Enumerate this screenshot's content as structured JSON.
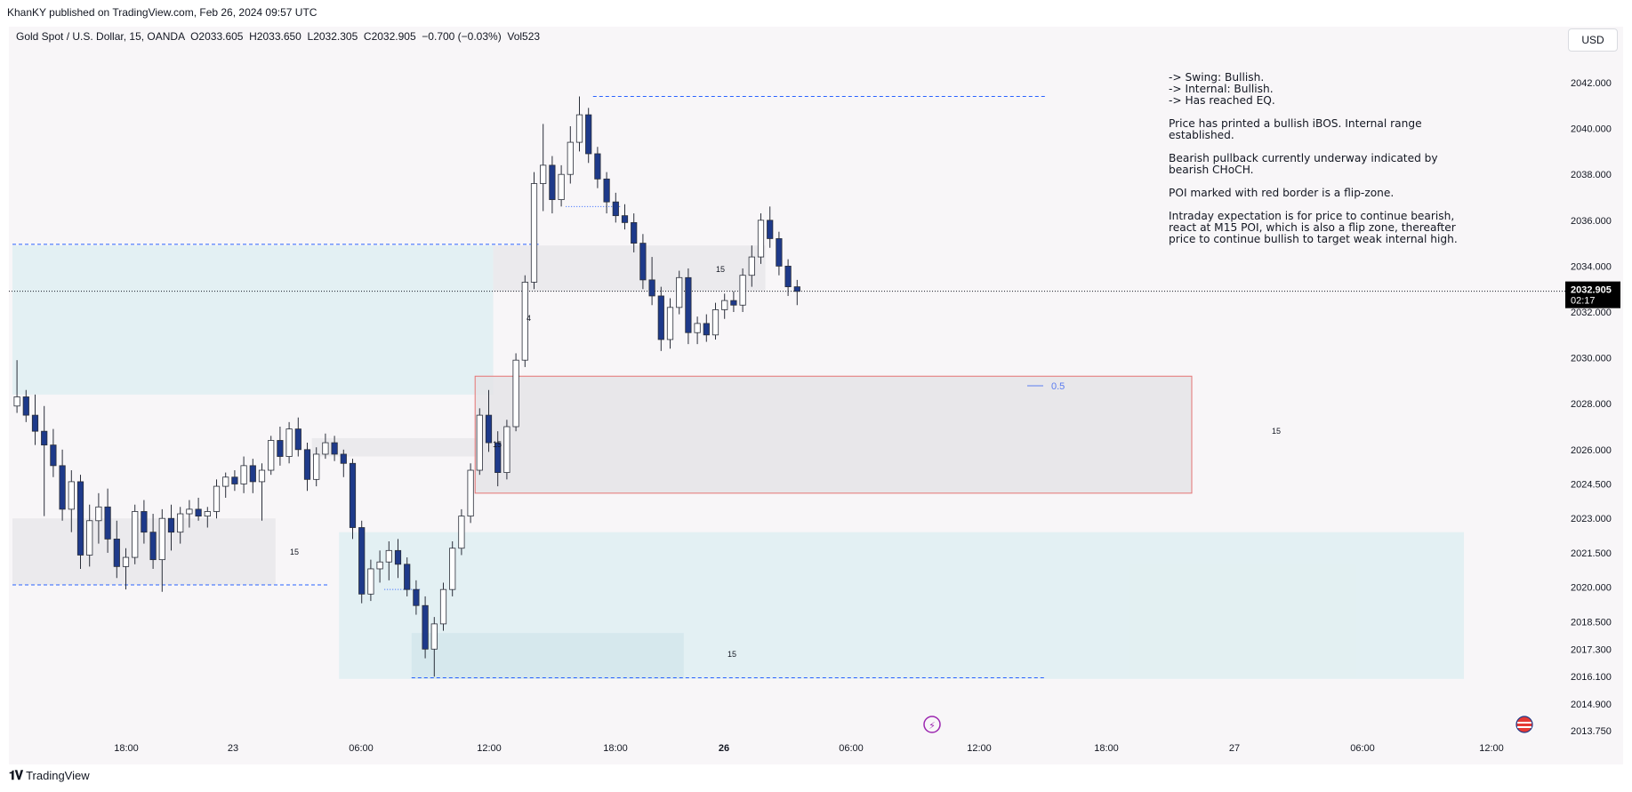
{
  "header": {
    "published": "KhanKY published on TradingView.com, Feb 26, 2024 09:57 UTC"
  },
  "legend": {
    "text": "Gold Spot / U.S. Dollar, 15, OANDA  O2033.605  H2033.650  L2032.305  C2032.905  −0.700 (−0.03%)  Vol523"
  },
  "currency_button": "USD",
  "notes": [
    "-> Swing: Bullish.\n-> Internal: Bullish.\n-> Has reached EQ.",
    "Price has printed a bullish iBOS.  Internal range\nestablished.",
    "Bearish pullback currently underway indicated by\nbearish CHoCH.",
    "POI marked with red border is a flip-zone.",
    "Intraday expectation is for price to continue bearish,\nreact at M15 POI, which is also a flip zone, thereafter\nprice to continue bullish to target weak internal high."
  ],
  "footer": {
    "brand": "TradingView"
  },
  "colors": {
    "bull_candle": "#ffffff",
    "bear_candle": "#1e3a8a",
    "wick": "#2a2e39",
    "zone_teal": "#d7ecef",
    "zone_grey": "#e3e3e6",
    "poi_border": "#e57373",
    "dashed_blue": "#2962ff",
    "price_label_bg": "#000000"
  },
  "chart_data": {
    "type": "candlestick",
    "symbol": "Gold Spot / U.S. Dollar",
    "interval": "15",
    "exchange": "OANDA",
    "ohlc": {
      "open": 2033.605,
      "high": 2033.65,
      "low": 2032.305,
      "close": 2032.905,
      "change": "−0.700 (−0.03%)",
      "volume": "Vol523"
    },
    "last_price": {
      "value": "2032.905",
      "countdown": "02:17"
    },
    "y_ticks": [
      "2042.000",
      "2040.000",
      "2038.000",
      "2036.000",
      "2034.000",
      "2032.000",
      "2030.000",
      "2028.000",
      "2026.000",
      "2024.500",
      "2023.000",
      "2021.500",
      "2020.000",
      "2018.500",
      "2017.300",
      "2016.100",
      "2014.900",
      "2013.750"
    ],
    "x_ticks": [
      "18:00",
      "23",
      "06:00",
      "12:00",
      "18:00",
      "26",
      "06:00",
      "12:00",
      "18:00",
      "27",
      "06:00",
      "12:00"
    ],
    "x_ticks_bold": [
      "26"
    ],
    "annotations": {
      "fib_label": "0.5",
      "zone_labels": [
        "15",
        "15",
        "15",
        "15",
        "4",
        "15"
      ]
    },
    "zones": [
      {
        "kind": "teal",
        "from_bar": 0,
        "to_bar": 53,
        "top": 2034.9,
        "bottom": 2028.4
      },
      {
        "kind": "grey",
        "from_bar": 53,
        "to_bar": 83,
        "top": 2034.9,
        "bottom": 2032.9
      },
      {
        "kind": "grey",
        "from_bar": 0,
        "to_bar": 29,
        "top": 2023.0,
        "bottom": 2020.1
      },
      {
        "kind": "grey",
        "from_bar": 33,
        "to_bar": 52,
        "top": 2026.5,
        "bottom": 2025.7
      },
      {
        "kind": "teal",
        "from_bar": 36,
        "to_bar": 160,
        "top": 2022.4,
        "bottom": 2016.0
      },
      {
        "kind": "teal-dark",
        "from_bar": 44,
        "to_bar": 74,
        "top": 2018.0,
        "bottom": 2016.0
      },
      {
        "kind": "poi",
        "from_bar": 51,
        "to_bar": 130,
        "top": 2029.2,
        "bottom": 2024.1
      }
    ],
    "levels": [
      {
        "value": 2041.4,
        "from_bar": 64,
        "to_bar": 114,
        "style": "dashed"
      },
      {
        "value": 2034.95,
        "from_bar": 0,
        "to_bar": 58,
        "style": "dashed"
      },
      {
        "value": 2020.1,
        "from_bar": 0,
        "to_bar": 35,
        "style": "dashed"
      },
      {
        "value": 2016.05,
        "from_bar": 44,
        "to_bar": 114,
        "style": "dashed"
      },
      {
        "value": 2036.6,
        "from_bar": 61,
        "to_bar": 67,
        "style": "dotted"
      },
      {
        "value": 2019.9,
        "from_bar": 41,
        "to_bar": 45,
        "style": "dotted"
      }
    ],
    "candles": [
      [
        2027.9,
        2029.9,
        2027.6,
        2028.3
      ],
      [
        2028.3,
        2028.6,
        2027.2,
        2027.5
      ],
      [
        2027.5,
        2028.4,
        2026.2,
        2026.8
      ],
      [
        2026.8,
        2027.9,
        2023.1,
        2026.2
      ],
      [
        2026.2,
        2026.9,
        2024.8,
        2025.3
      ],
      [
        2025.3,
        2026.0,
        2022.9,
        2023.4
      ],
      [
        2023.4,
        2025.1,
        2022.4,
        2024.6
      ],
      [
        2024.6,
        2024.9,
        2020.8,
        2021.4
      ],
      [
        2021.4,
        2023.6,
        2020.9,
        2022.9
      ],
      [
        2022.9,
        2024.1,
        2021.9,
        2023.5
      ],
      [
        2023.5,
        2024.3,
        2021.5,
        2022.1
      ],
      [
        2022.1,
        2022.9,
        2020.4,
        2020.9
      ],
      [
        2020.9,
        2021.7,
        2019.9,
        2021.3
      ],
      [
        2021.3,
        2023.6,
        2021.0,
        2023.3
      ],
      [
        2023.3,
        2023.8,
        2021.9,
        2022.4
      ],
      [
        2022.4,
        2023.2,
        2020.8,
        2021.2
      ],
      [
        2021.2,
        2023.4,
        2019.8,
        2023.0
      ],
      [
        2023.0,
        2023.6,
        2021.6,
        2022.4
      ],
      [
        2022.4,
        2023.5,
        2021.9,
        2023.2
      ],
      [
        2023.2,
        2023.8,
        2022.6,
        2023.4
      ],
      [
        2023.4,
        2023.9,
        2022.9,
        2023.1
      ],
      [
        2023.1,
        2023.5,
        2022.6,
        2023.3
      ],
      [
        2023.3,
        2024.7,
        2023.0,
        2024.4
      ],
      [
        2024.4,
        2025.0,
        2023.9,
        2024.8
      ],
      [
        2024.8,
        2025.1,
        2024.2,
        2024.5
      ],
      [
        2024.5,
        2025.7,
        2024.1,
        2025.3
      ],
      [
        2025.3,
        2025.6,
        2024.1,
        2024.6
      ],
      [
        2024.6,
        2025.4,
        2022.9,
        2025.1
      ],
      [
        2025.1,
        2026.6,
        2024.9,
        2026.4
      ],
      [
        2026.4,
        2027.0,
        2025.3,
        2025.7
      ],
      [
        2025.7,
        2027.2,
        2025.4,
        2026.9
      ],
      [
        2026.9,
        2027.4,
        2025.7,
        2026.0
      ],
      [
        2026.0,
        2026.3,
        2024.2,
        2024.7
      ],
      [
        2024.7,
        2026.1,
        2024.4,
        2025.8
      ],
      [
        2025.8,
        2026.7,
        2025.6,
        2026.3
      ],
      [
        2026.3,
        2026.6,
        2025.5,
        2025.8
      ],
      [
        2025.8,
        2026.0,
        2024.8,
        2025.4
      ],
      [
        2025.4,
        2025.6,
        2022.1,
        2022.6
      ],
      [
        2022.6,
        2022.9,
        2019.3,
        2019.7
      ],
      [
        2019.7,
        2021.2,
        2019.4,
        2020.8
      ],
      [
        2020.8,
        2021.6,
        2020.2,
        2021.1
      ],
      [
        2021.1,
        2022.0,
        2020.3,
        2021.6
      ],
      [
        2021.6,
        2022.1,
        2020.4,
        2021.0
      ],
      [
        2021.0,
        2021.3,
        2019.6,
        2019.9
      ],
      [
        2019.9,
        2020.3,
        2018.8,
        2019.2
      ],
      [
        2019.2,
        2019.6,
        2016.9,
        2017.3
      ],
      [
        2017.3,
        2018.7,
        2016.1,
        2018.4
      ],
      [
        2018.4,
        2020.2,
        2018.1,
        2019.9
      ],
      [
        2019.9,
        2022.0,
        2019.6,
        2021.7
      ],
      [
        2021.7,
        2023.4,
        2021.4,
        2023.1
      ],
      [
        2023.1,
        2025.4,
        2022.8,
        2025.1
      ],
      [
        2025.1,
        2027.8,
        2024.9,
        2027.5
      ],
      [
        2027.5,
        2028.6,
        2025.9,
        2026.3
      ],
      [
        2026.3,
        2026.8,
        2024.4,
        2025.0
      ],
      [
        2025.0,
        2027.3,
        2024.7,
        2027.0
      ],
      [
        2027.0,
        2030.2,
        2026.8,
        2029.9
      ],
      [
        2029.9,
        2033.6,
        2029.6,
        2033.3
      ],
      [
        2033.3,
        2038.1,
        2033.0,
        2037.6
      ],
      [
        2037.6,
        2040.2,
        2036.4,
        2038.4
      ],
      [
        2038.4,
        2038.8,
        2036.3,
        2036.9
      ],
      [
        2036.9,
        2038.4,
        2036.6,
        2038.0
      ],
      [
        2038.0,
        2040.1,
        2037.6,
        2039.4
      ],
      [
        2039.4,
        2041.4,
        2039.0,
        2040.6
      ],
      [
        2040.6,
        2040.9,
        2038.5,
        2038.9
      ],
      [
        2038.9,
        2039.2,
        2037.4,
        2037.8
      ],
      [
        2037.8,
        2038.1,
        2036.3,
        2036.8
      ],
      [
        2036.8,
        2037.2,
        2035.9,
        2036.2
      ],
      [
        2036.2,
        2036.7,
        2035.6,
        2035.9
      ],
      [
        2035.9,
        2036.3,
        2034.6,
        2035.0
      ],
      [
        2035.0,
        2035.4,
        2033.0,
        2033.4
      ],
      [
        2033.4,
        2034.4,
        2032.3,
        2032.7
      ],
      [
        2032.7,
        2033.1,
        2030.3,
        2030.8
      ],
      [
        2030.8,
        2032.6,
        2030.4,
        2032.2
      ],
      [
        2032.2,
        2033.8,
        2031.9,
        2033.5
      ],
      [
        2033.5,
        2033.9,
        2030.6,
        2031.1
      ],
      [
        2031.1,
        2031.8,
        2030.6,
        2031.5
      ],
      [
        2031.5,
        2031.9,
        2030.7,
        2031.0
      ],
      [
        2031.0,
        2032.4,
        2030.8,
        2032.1
      ],
      [
        2032.1,
        2032.8,
        2031.7,
        2032.5
      ],
      [
        2032.5,
        2032.9,
        2032.0,
        2032.3
      ],
      [
        2032.3,
        2033.9,
        2032.0,
        2033.6
      ],
      [
        2033.6,
        2034.9,
        2033.1,
        2034.4
      ],
      [
        2034.4,
        2036.3,
        2034.1,
        2036.0
      ],
      [
        2036.0,
        2036.6,
        2034.8,
        2035.2
      ],
      [
        2035.2,
        2035.5,
        2033.6,
        2034.0
      ],
      [
        2034.0,
        2034.3,
        2032.7,
        2033.1
      ],
      [
        2033.1,
        2033.4,
        2032.3,
        2032.9
      ]
    ]
  }
}
